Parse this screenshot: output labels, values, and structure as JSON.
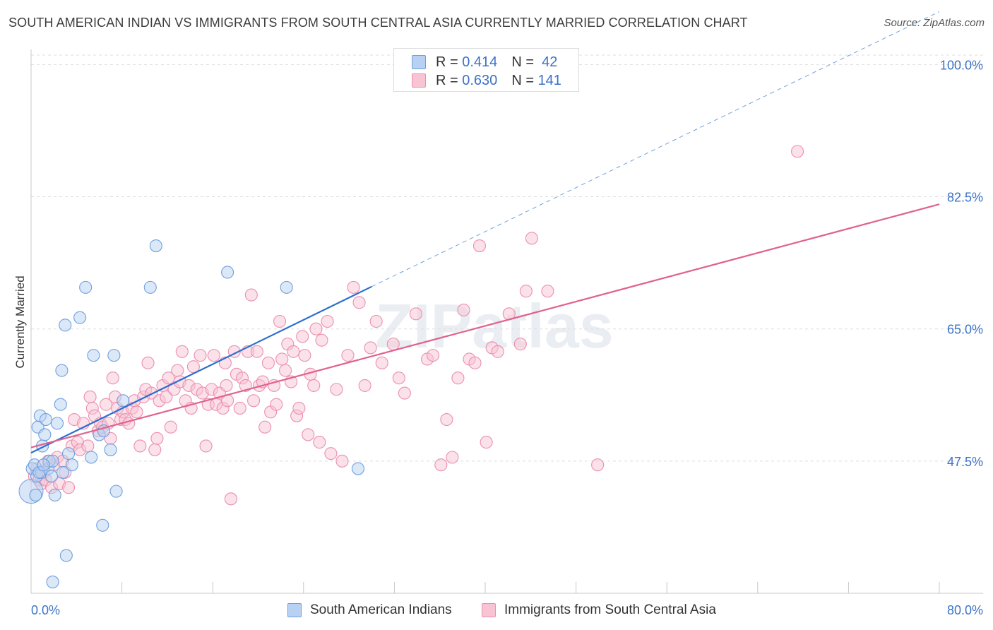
{
  "title": "SOUTH AMERICAN INDIAN VS IMMIGRANTS FROM SOUTH CENTRAL ASIA CURRENTLY MARRIED CORRELATION CHART",
  "source": "Source: ZipAtlas.com",
  "watermark": "ZIPatlas",
  "colors": {
    "blue_fill": "#b8d1f2",
    "blue_stroke": "#6f9fde",
    "blue_line": "#2d6ed0",
    "pink_fill": "#f8c3d3",
    "pink_stroke": "#ec8fae",
    "pink_line": "#e0628c",
    "axis_label": "#3b72c8",
    "grid": "#dddddd"
  },
  "legend_top": [
    {
      "r_label": "R =",
      "r_value": "0.414",
      "n_label": "N =",
      "n_value": "42"
    },
    {
      "r_label": "R =",
      "r_value": "0.630",
      "n_label": "N =",
      "n_value": "141"
    }
  ],
  "legend_bottom": [
    "South American Indians",
    "Immigrants from South Central Asia"
  ],
  "chart_data": {
    "type": "scatter",
    "title": "SOUTH AMERICAN INDIAN VS IMMIGRANTS FROM SOUTH CENTRAL ASIA CURRENTLY MARRIED CORRELATION CHART",
    "xlabel": "",
    "ylabel": "Currently Married",
    "xlim": [
      0,
      80
    ],
    "ylim": [
      30,
      102
    ],
    "x_tick_labels": [
      "0.0%",
      "80.0%"
    ],
    "y_ticks": [
      47.5,
      65.0,
      82.5,
      100.0
    ],
    "y_tick_labels": [
      "47.5%",
      "65.0%",
      "82.5%",
      "100.0%"
    ],
    "grid": true,
    "legend_position": "top-center",
    "series": [
      {
        "name": "South American Indians",
        "R": 0.414,
        "N": 42,
        "trend": {
          "x": [
            0.0,
            30.0
          ],
          "y": [
            48.6,
            70.6
          ],
          "dashed_extension_to": [
            80.0,
            107.0
          ]
        },
        "points": [
          [
            0.1,
            46.5
          ],
          [
            0.3,
            47.0
          ],
          [
            0.5,
            45.5
          ],
          [
            0.6,
            52.0
          ],
          [
            0.8,
            53.5
          ],
          [
            0.9,
            46.0
          ],
          [
            1.0,
            49.5
          ],
          [
            1.2,
            51.0
          ],
          [
            1.3,
            53.0
          ],
          [
            1.5,
            46.5
          ],
          [
            1.6,
            47.5
          ],
          [
            1.8,
            45.5
          ],
          [
            1.9,
            47.5
          ],
          [
            2.1,
            43.0
          ],
          [
            2.3,
            52.5
          ],
          [
            2.6,
            55.0
          ],
          [
            2.7,
            59.5
          ],
          [
            3.0,
            65.5
          ],
          [
            3.3,
            48.5
          ],
          [
            3.6,
            47.0
          ],
          [
            4.3,
            66.5
          ],
          [
            4.8,
            70.5
          ],
          [
            5.3,
            48.0
          ],
          [
            5.5,
            61.5
          ],
          [
            6.0,
            51.0
          ],
          [
            6.4,
            51.5
          ],
          [
            7.0,
            49.0
          ],
          [
            7.3,
            61.5
          ],
          [
            7.5,
            43.5
          ],
          [
            8.1,
            55.5
          ],
          [
            10.5,
            70.5
          ],
          [
            11.0,
            76.0
          ],
          [
            17.3,
            72.5
          ],
          [
            22.5,
            70.5
          ],
          [
            28.8,
            46.5
          ],
          [
            6.3,
            39.0
          ],
          [
            3.1,
            35.0
          ],
          [
            1.9,
            31.5
          ],
          [
            0.4,
            43.0
          ],
          [
            2.8,
            46.0
          ],
          [
            0.7,
            46.0
          ],
          [
            1.1,
            47.0
          ]
        ]
      },
      {
        "name": "Immigrants from South Central Asia",
        "R": 0.63,
        "N": 141,
        "trend": {
          "x": [
            0.0,
            80.0
          ],
          "y": [
            49.3,
            81.5
          ]
        },
        "points": [
          [
            0.3,
            45.5
          ],
          [
            0.5,
            46.5
          ],
          [
            0.7,
            45.0
          ],
          [
            0.9,
            44.5
          ],
          [
            1.1,
            46.0
          ],
          [
            1.3,
            45.0
          ],
          [
            1.5,
            47.5
          ],
          [
            1.8,
            44.0
          ],
          [
            2.0,
            47.0
          ],
          [
            2.3,
            48.0
          ],
          [
            2.5,
            44.5
          ],
          [
            2.8,
            47.5
          ],
          [
            3.0,
            46.0
          ],
          [
            3.3,
            44.0
          ],
          [
            3.6,
            49.5
          ],
          [
            3.8,
            53.0
          ],
          [
            4.1,
            50.0
          ],
          [
            4.3,
            49.0
          ],
          [
            4.6,
            52.5
          ],
          [
            5.0,
            49.5
          ],
          [
            5.2,
            56.0
          ],
          [
            5.4,
            54.5
          ],
          [
            5.6,
            53.5
          ],
          [
            5.9,
            51.5
          ],
          [
            6.1,
            52.5
          ],
          [
            6.3,
            52.0
          ],
          [
            6.6,
            55.0
          ],
          [
            6.8,
            52.5
          ],
          [
            7.0,
            50.5
          ],
          [
            7.2,
            58.5
          ],
          [
            7.4,
            56.0
          ],
          [
            7.6,
            54.5
          ],
          [
            7.9,
            53.0
          ],
          [
            8.1,
            54.0
          ],
          [
            8.3,
            53.0
          ],
          [
            8.6,
            52.5
          ],
          [
            8.9,
            54.5
          ],
          [
            9.1,
            55.5
          ],
          [
            9.3,
            54.0
          ],
          [
            9.6,
            49.5
          ],
          [
            9.9,
            56.0
          ],
          [
            10.1,
            57.0
          ],
          [
            10.3,
            60.5
          ],
          [
            10.6,
            56.5
          ],
          [
            10.9,
            49.0
          ],
          [
            11.1,
            50.5
          ],
          [
            11.3,
            55.5
          ],
          [
            11.6,
            57.5
          ],
          [
            11.9,
            56.0
          ],
          [
            12.1,
            58.5
          ],
          [
            12.3,
            52.0
          ],
          [
            12.6,
            57.0
          ],
          [
            12.9,
            59.5
          ],
          [
            13.1,
            58.0
          ],
          [
            13.3,
            62.0
          ],
          [
            13.6,
            55.5
          ],
          [
            13.9,
            57.5
          ],
          [
            14.1,
            54.5
          ],
          [
            14.3,
            60.0
          ],
          [
            14.6,
            57.0
          ],
          [
            14.9,
            61.5
          ],
          [
            15.1,
            56.5
          ],
          [
            15.4,
            49.5
          ],
          [
            15.6,
            55.0
          ],
          [
            15.9,
            57.0
          ],
          [
            16.1,
            61.5
          ],
          [
            16.3,
            55.0
          ],
          [
            16.6,
            56.5
          ],
          [
            16.9,
            54.5
          ],
          [
            17.1,
            60.5
          ],
          [
            17.3,
            55.5
          ],
          [
            17.6,
            42.5
          ],
          [
            17.9,
            62.0
          ],
          [
            18.1,
            59.0
          ],
          [
            18.4,
            54.5
          ],
          [
            18.6,
            58.5
          ],
          [
            18.9,
            57.5
          ],
          [
            19.1,
            62.0
          ],
          [
            19.4,
            69.5
          ],
          [
            19.6,
            55.5
          ],
          [
            19.9,
            62.0
          ],
          [
            20.1,
            57.5
          ],
          [
            20.4,
            58.0
          ],
          [
            20.6,
            52.0
          ],
          [
            20.9,
            60.5
          ],
          [
            21.1,
            54.0
          ],
          [
            21.4,
            57.5
          ],
          [
            21.6,
            55.0
          ],
          [
            21.9,
            66.0
          ],
          [
            22.1,
            61.0
          ],
          [
            22.4,
            59.5
          ],
          [
            22.6,
            63.0
          ],
          [
            22.9,
            58.0
          ],
          [
            23.1,
            62.0
          ],
          [
            23.4,
            53.5
          ],
          [
            23.6,
            54.5
          ],
          [
            23.9,
            64.0
          ],
          [
            24.1,
            61.5
          ],
          [
            24.4,
            51.0
          ],
          [
            24.6,
            59.0
          ],
          [
            24.9,
            57.5
          ],
          [
            25.1,
            65.0
          ],
          [
            25.4,
            50.0
          ],
          [
            25.6,
            63.5
          ],
          [
            26.1,
            66.0
          ],
          [
            26.4,
            48.5
          ],
          [
            26.9,
            57.0
          ],
          [
            27.4,
            47.5
          ],
          [
            27.9,
            61.5
          ],
          [
            28.4,
            70.5
          ],
          [
            28.9,
            68.5
          ],
          [
            29.4,
            57.5
          ],
          [
            29.9,
            62.5
          ],
          [
            30.4,
            66.0
          ],
          [
            30.9,
            60.5
          ],
          [
            31.9,
            63.0
          ],
          [
            32.4,
            58.5
          ],
          [
            32.9,
            56.5
          ],
          [
            33.9,
            67.0
          ],
          [
            34.9,
            61.0
          ],
          [
            35.4,
            61.5
          ],
          [
            36.1,
            47.0
          ],
          [
            36.6,
            53.0
          ],
          [
            37.1,
            48.0
          ],
          [
            37.6,
            58.5
          ],
          [
            38.1,
            67.5
          ],
          [
            38.6,
            61.0
          ],
          [
            39.1,
            60.5
          ],
          [
            40.1,
            50.0
          ],
          [
            40.6,
            62.5
          ],
          [
            41.1,
            62.0
          ],
          [
            42.1,
            67.0
          ],
          [
            43.1,
            63.0
          ],
          [
            43.6,
            70.0
          ],
          [
            44.1,
            77.0
          ],
          [
            49.9,
            47.0
          ],
          [
            67.5,
            88.5
          ],
          [
            45.5,
            70.0
          ],
          [
            39.5,
            76.0
          ],
          [
            17.2,
            57.5
          ]
        ]
      }
    ]
  }
}
